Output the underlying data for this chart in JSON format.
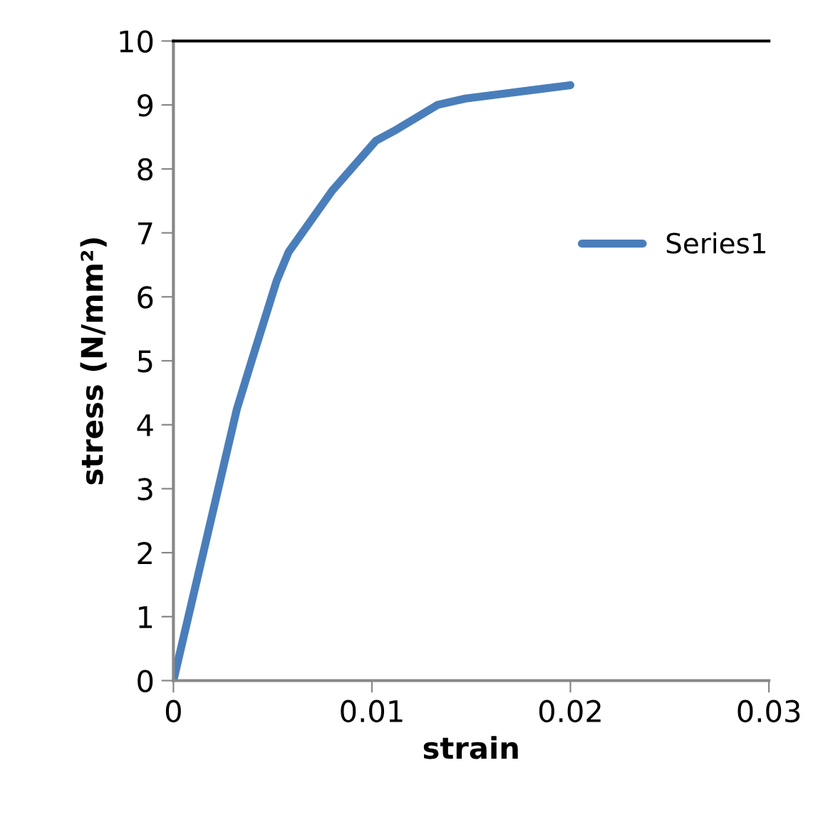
{
  "chart_data": {
    "type": "line",
    "xlabel": "strain",
    "ylabel": "stress (N/mm²)",
    "xlim": [
      0,
      0.03
    ],
    "xticks": [
      0,
      0.01,
      0.02,
      0.03
    ],
    "ylim": [
      0,
      10
    ],
    "yticks": [
      0,
      1,
      2,
      3,
      4,
      5,
      6,
      7,
      8,
      9,
      10
    ],
    "grid": false,
    "legend": "right",
    "marker": "none",
    "line_style": "solid",
    "series": [
      {
        "name": "Series1",
        "color": "#4a7ebb",
        "x": [
          0,
          0.0032,
          0.004,
          0.0052,
          0.0058,
          0.008,
          0.0102,
          0.0111,
          0.0133,
          0.0147,
          0.02
        ],
        "values": [
          0,
          4.25,
          5.06,
          6.25,
          6.7,
          7.66,
          8.44,
          8.59,
          9.0,
          9.1,
          9.31
        ]
      }
    ]
  }
}
